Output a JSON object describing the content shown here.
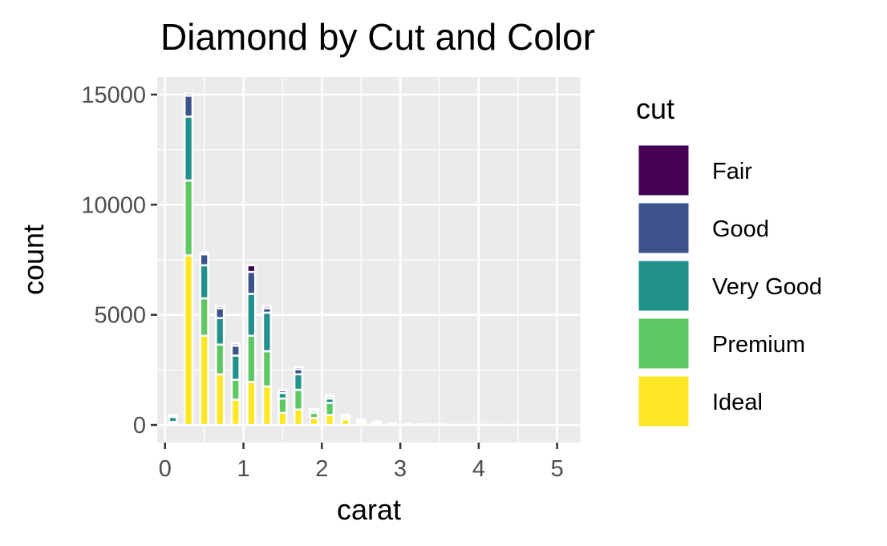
{
  "chart_data": {
    "type": "bar",
    "title": "Diamond by Cut and Color",
    "xlabel": "carat",
    "ylabel": "count",
    "xlim": [
      -0.1,
      5.3
    ],
    "ylim": [
      -800,
      15800
    ],
    "x_ticks": [
      0,
      1,
      2,
      3,
      4,
      5
    ],
    "y_ticks": [
      0,
      5000,
      10000,
      15000
    ],
    "grid": true,
    "stacked": true,
    "legend": {
      "title": "cut",
      "position": "right"
    },
    "bin_width": 0.1,
    "x": [
      0.1,
      0.3,
      0.5,
      0.7,
      0.9,
      1.1,
      1.3,
      1.5,
      1.7,
      1.9,
      2.1,
      2.3,
      2.5,
      2.7,
      2.9,
      3.1,
      3.3,
      3.5,
      3.7,
      3.9,
      4.1,
      4.3,
      4.5,
      4.7,
      4.9,
      5.1
    ],
    "series": [
      {
        "name": "Ideal",
        "color": "#FDE725",
        "values": [
          60,
          7700,
          4050,
          2300,
          1150,
          1950,
          1750,
          550,
          700,
          320,
          450,
          250,
          100,
          70,
          40,
          20,
          10,
          5,
          5,
          3,
          2,
          1,
          1,
          0,
          0,
          0
        ]
      },
      {
        "name": "Premium",
        "color": "#5EC962",
        "values": [
          80,
          3400,
          1700,
          1350,
          900,
          2100,
          1600,
          650,
          900,
          230,
          550,
          100,
          60,
          40,
          20,
          10,
          8,
          5,
          3,
          2,
          1,
          1,
          1,
          1,
          0,
          0
        ]
      },
      {
        "name": "Very Good",
        "color": "#21918C",
        "values": [
          220,
          2900,
          1500,
          1200,
          1100,
          1900,
          1750,
          250,
          700,
          100,
          200,
          60,
          40,
          25,
          15,
          8,
          4,
          3,
          2,
          1,
          1,
          0,
          0,
          0,
          0,
          0
        ]
      },
      {
        "name": "Good",
        "color": "#3B528B",
        "values": [
          60,
          950,
          500,
          450,
          450,
          1000,
          200,
          120,
          230,
          50,
          100,
          30,
          20,
          10,
          5,
          3,
          2,
          1,
          0,
          0,
          0,
          0,
          0,
          0,
          0,
          0
        ]
      },
      {
        "name": "Fair",
        "color": "#440154",
        "values": [
          10,
          100,
          50,
          100,
          100,
          300,
          100,
          30,
          100,
          15,
          50,
          15,
          10,
          5,
          3,
          2,
          1,
          1,
          0,
          0,
          0,
          0,
          0,
          0,
          0,
          0
        ]
      }
    ]
  }
}
